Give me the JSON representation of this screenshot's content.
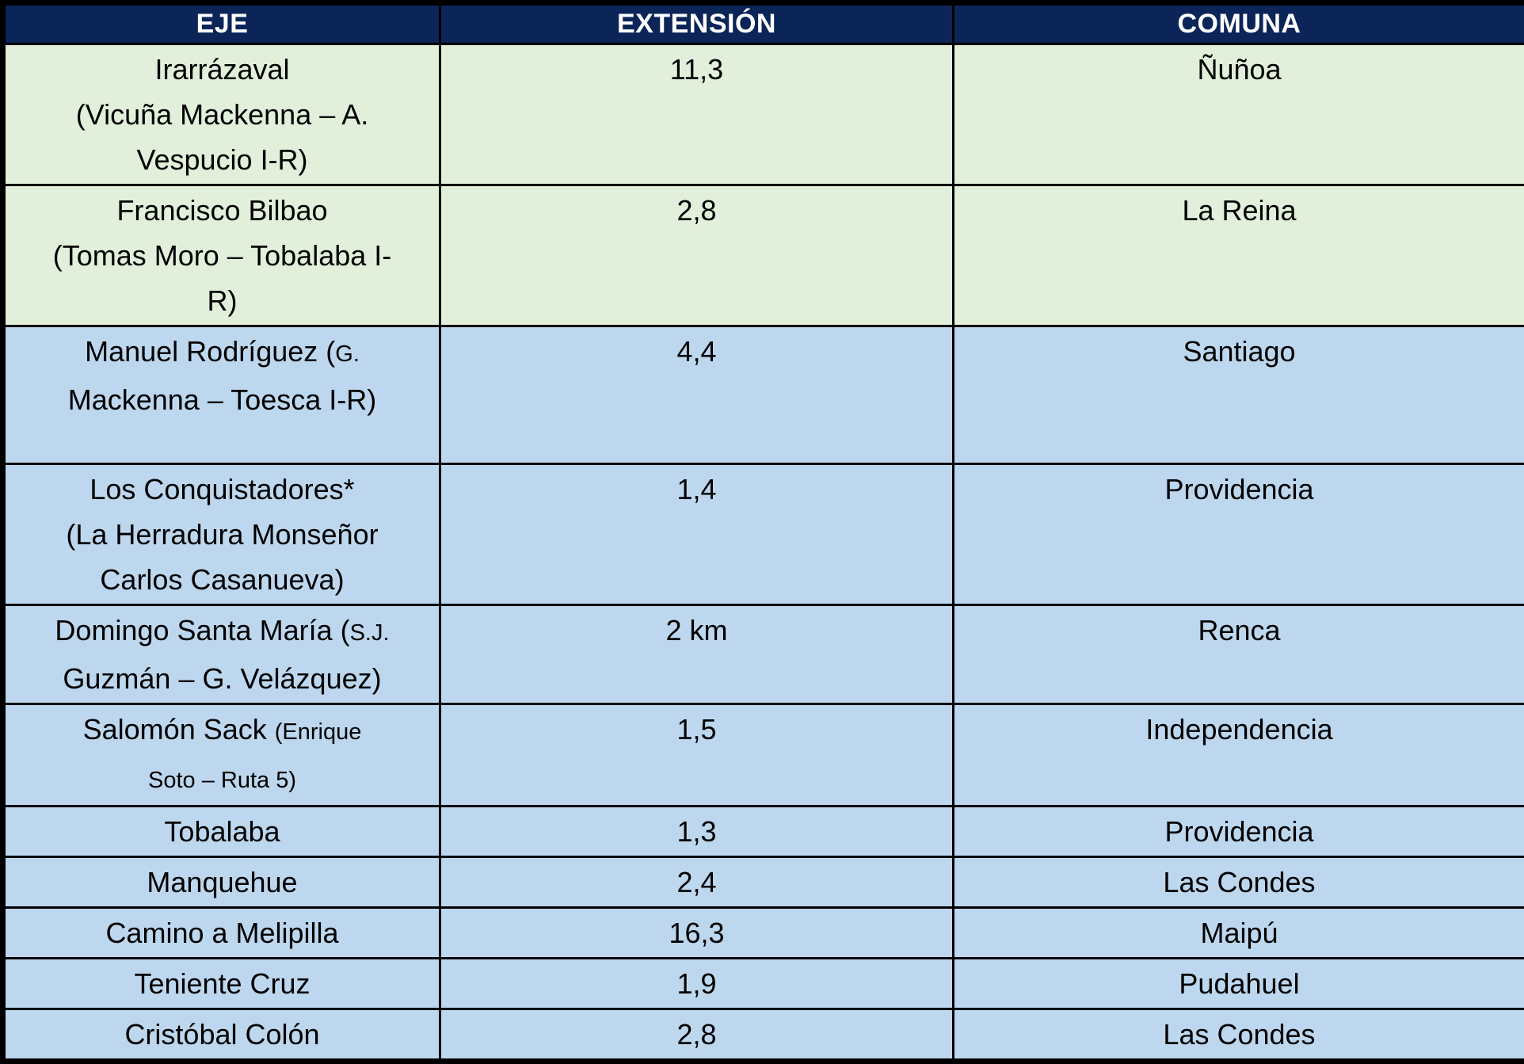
{
  "colors": {
    "header_bg": "#0B2559",
    "header_text": "#FFFFFF",
    "row_green_bg": "#E2EFDA",
    "row_blue_bg": "#BDD7EE",
    "border": "#000000",
    "body_text": "#000000"
  },
  "chart_data": {
    "type": "table",
    "title": "",
    "columns": [
      "EJE",
      "EXTENSIÓN",
      "COMUNA"
    ],
    "rows": [
      [
        "Irarrázaval (Vicuña Mackenna – A. Vespucio I-R)",
        "11,3",
        "Ñuñoa"
      ],
      [
        "Francisco Bilbao (Tomas Moro – Tobalaba I-R)",
        "2,8",
        "La Reina"
      ],
      [
        "Manuel Rodríguez (G. Mackenna – Toesca I-R)",
        "4,4",
        "Santiago"
      ],
      [
        "Los Conquistadores* (La Herradura Monseñor Carlos Casanueva)",
        "1,4",
        "Providencia"
      ],
      [
        "Domingo Santa María (S.J. Guzmán – G. Velázquez)",
        "2 km",
        "Renca"
      ],
      [
        "Salomón Sack (Enrique Soto – Ruta 5)",
        "1,5",
        "Independencia"
      ],
      [
        "Tobalaba",
        "1,3",
        "Providencia"
      ],
      [
        "Manquehue",
        "2,4",
        "Las Condes"
      ],
      [
        "Camino a Melipilla",
        "16,3",
        "Maipú"
      ],
      [
        "Teniente Cruz",
        "1,9",
        "Pudahuel"
      ],
      [
        "Cristóbal Colón",
        "2,8",
        "Las Condes"
      ]
    ]
  },
  "table": {
    "columns": [
      "EJE",
      "EXTENSIÓN",
      "COMUNA"
    ],
    "rows": [
      {
        "eje_lines": [
          [
            {
              "t": "Irarrázaval"
            }
          ],
          [
            {
              "t": "(Vicuña Mackenna – A."
            }
          ],
          [
            {
              "t": "Vespucio I-R)"
            }
          ]
        ],
        "extension": "11,3",
        "comuna": "Ñuñoa",
        "theme": "green",
        "size": "xl"
      },
      {
        "eje_lines": [
          [
            {
              "t": "Francisco Bilbao"
            }
          ],
          [
            {
              "t": "(Tomas Moro – Tobalaba I-"
            }
          ],
          [
            {
              "t": "R)"
            }
          ]
        ],
        "extension": "2,8",
        "comuna": "La Reina",
        "theme": "green",
        "size": "xl"
      },
      {
        "eje_lines": [
          [
            {
              "t": "Manuel Rodríguez ("
            },
            {
              "t": "G.",
              "small": true
            }
          ],
          [
            {
              "t": "Mackenna – Toesca I-R)"
            }
          ]
        ],
        "extension": "4,4",
        "comuna": "Santiago",
        "theme": "blue",
        "size": "xl"
      },
      {
        "eje_lines": [
          [
            {
              "t": "Los Conquistadores*"
            }
          ],
          [
            {
              "t": "(La Herradura Monseñor"
            }
          ],
          [
            {
              "t": "Carlos Casanueva)"
            }
          ]
        ],
        "extension": "1,4",
        "comuna": "Providencia",
        "theme": "blue",
        "size": "xl"
      },
      {
        "eje_lines": [
          [
            {
              "t": "Domingo Santa María ("
            },
            {
              "t": "S.J.",
              "small": true
            }
          ],
          [
            {
              "t": "Guzmán – G. Velázquez)"
            }
          ]
        ],
        "extension": "2 km",
        "comuna": "Renca",
        "theme": "blue",
        "size": "md"
      },
      {
        "eje_lines": [
          [
            {
              "t": "Salomón Sack "
            },
            {
              "t": "(Enrique",
              "small": true
            }
          ],
          [
            {
              "t": "Soto – Ruta 5)",
              "small": true
            }
          ]
        ],
        "extension": "1,5",
        "comuna": "Independencia",
        "theme": "blue",
        "size": "md"
      },
      {
        "eje_lines": [
          [
            {
              "t": "Tobalaba"
            }
          ]
        ],
        "extension": "1,3",
        "comuna": "Providencia",
        "theme": "blue",
        "size": "sm"
      },
      {
        "eje_lines": [
          [
            {
              "t": "Manquehue"
            }
          ]
        ],
        "extension": "2,4",
        "comuna": "Las Condes",
        "theme": "blue",
        "size": "sm"
      },
      {
        "eje_lines": [
          [
            {
              "t": "Camino a Melipilla"
            }
          ]
        ],
        "extension": "16,3",
        "comuna": "Maipú",
        "theme": "blue",
        "size": "sm"
      },
      {
        "eje_lines": [
          [
            {
              "t": "Teniente Cruz"
            }
          ]
        ],
        "extension": "1,9",
        "comuna": "Pudahuel",
        "theme": "blue",
        "size": "sm"
      },
      {
        "eje_lines": [
          [
            {
              "t": "Cristóbal Colón"
            }
          ]
        ],
        "extension": "2,8",
        "comuna": "Las Condes",
        "theme": "blue",
        "size": "sm"
      }
    ]
  }
}
